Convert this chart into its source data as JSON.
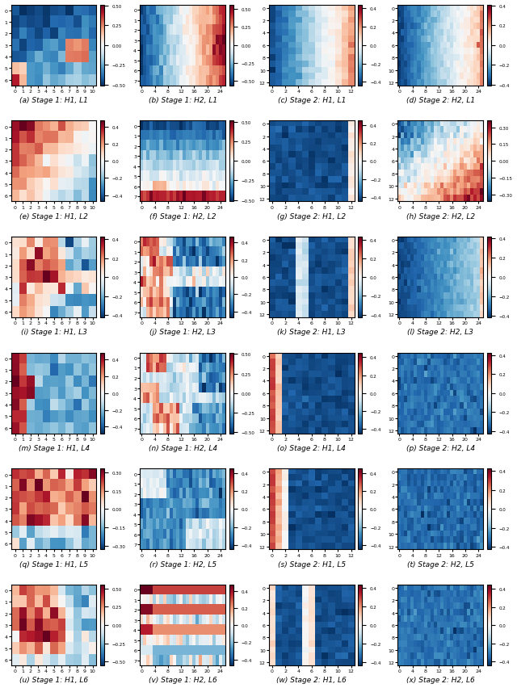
{
  "nrows": 6,
  "ncols": 4,
  "figsize": [
    6.4,
    8.53
  ],
  "dpi": 100,
  "subtitles": [
    "(a) Stage 1: H1, L1",
    "(b) Stage 1: H2, L1",
    "(c) Stage 2: H1, L1",
    "(d) Stage 2: H2, L1",
    "(e) Stage 1: H1, L2",
    "(f) Stage 1: H2, L2",
    "(g) Stage 2: H1, L2",
    "(h) Stage 2: H2, L2",
    "(i) Stage 1: H1, L3",
    "(j) Stage 1: H2, L3",
    "(k) Stage 2: H1, L3",
    "(l) Stage 2: H2, L3",
    "(m) Stage 1: H1, L4",
    "(n) Stage 1: H2, L4",
    "(o) Stage 2: H1, L4",
    "(p) Stage 2: H2, L4",
    "(q) Stage 1: H1, L5",
    "(r) Stage 1: H2, L5",
    "(s) Stage 2: H1, L5",
    "(t) Stage 2: H2, L5",
    "(u) Stage 1: H1, L6",
    "(v) Stage 1: H2, L6",
    "(w) Stage 2: H1, L6",
    "(x) Stage 2: H2, L6"
  ],
  "cmap": "RdBu_r",
  "size_s1h1": [
    7,
    8
  ],
  "size_s1h2": [
    8,
    11
  ],
  "size_s2h1": [
    12,
    12
  ],
  "size_s2h2": [
    12,
    11
  ],
  "subtitle_fontsize": 6.5,
  "tick_fontsize": 4.5,
  "cbar_fontsize": 4
}
